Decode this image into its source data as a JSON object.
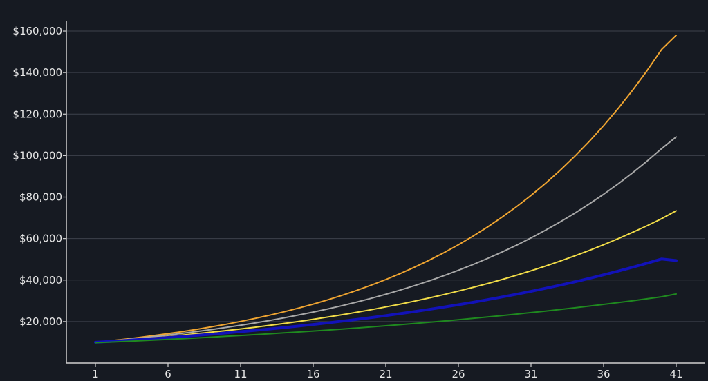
{
  "chart_data": {
    "type": "line",
    "title": "",
    "xlabel": "",
    "ylabel": "",
    "x": [
      1,
      2,
      3,
      4,
      5,
      6,
      7,
      8,
      9,
      10,
      11,
      12,
      13,
      14,
      15,
      16,
      17,
      18,
      19,
      20,
      21,
      22,
      23,
      24,
      25,
      26,
      27,
      28,
      29,
      30,
      31,
      32,
      33,
      34,
      35,
      36,
      37,
      38,
      39,
      40,
      41
    ],
    "x_ticks": [
      1,
      6,
      11,
      16,
      21,
      26,
      31,
      36,
      41
    ],
    "x_tick_labels": [
      "1",
      "6",
      "11",
      "16",
      "21",
      "26",
      "31",
      "36",
      "41"
    ],
    "xlim": [
      -1,
      43
    ],
    "ylim": [
      0,
      165000
    ],
    "y_ticks": [
      20000,
      40000,
      60000,
      80000,
      100000,
      120000,
      140000,
      160000
    ],
    "y_tick_labels": [
      "$20,000",
      "$40,000",
      "$60,000",
      "$80,000",
      "$100,000",
      "$120,000",
      "$140,000",
      "$160,000"
    ],
    "grid": "horizontal",
    "legend": "none",
    "background": "#161a22",
    "series": [
      {
        "color": "#f0a531",
        "width": 2,
        "values": [
          10000,
          10720,
          11490,
          12320,
          13210,
          14160,
          15180,
          16280,
          17450,
          18710,
          20060,
          21510,
          23060,
          24720,
          26510,
          28420,
          30470,
          32670,
          35020,
          37550,
          40260,
          43160,
          46270,
          49610,
          53190,
          57030,
          61140,
          65550,
          70280,
          75350,
          80780,
          86610,
          92860,
          99550,
          106730,
          114430,
          122690,
          131540,
          141020,
          151190,
          158000
        ]
      },
      {
        "color": "#a8a8a8",
        "width": 2,
        "values": [
          10000,
          10620,
          11270,
          11970,
          12710,
          13490,
          14330,
          15210,
          16150,
          17150,
          18210,
          19330,
          20530,
          21790,
          23140,
          24570,
          26080,
          27690,
          29400,
          31210,
          33140,
          35190,
          37360,
          39660,
          42110,
          44710,
          47460,
          50390,
          53500,
          56800,
          60310,
          64030,
          67980,
          72170,
          76630,
          81350,
          86370,
          91700,
          97360,
          103370,
          109000
        ]
      },
      {
        "color": "#f1dc48",
        "width": 2,
        "values": [
          10000,
          10510,
          11050,
          11610,
          12200,
          12820,
          13480,
          14160,
          14880,
          15640,
          16440,
          17280,
          18160,
          19090,
          20060,
          21090,
          22160,
          23290,
          24480,
          25730,
          27040,
          28420,
          29870,
          31390,
          32990,
          34680,
          36450,
          38300,
          40260,
          42310,
          44470,
          46740,
          49120,
          51630,
          54260,
          57030,
          59940,
          63000,
          66210,
          69590,
          73400
        ]
      },
      {
        "color": "#1212b8",
        "width": 4,
        "values": [
          10000,
          10420,
          10860,
          11320,
          11800,
          12300,
          12810,
          13350,
          13920,
          14510,
          15120,
          15760,
          16420,
          17110,
          17840,
          18590,
          19370,
          20190,
          21040,
          21930,
          22860,
          23820,
          24830,
          25880,
          26970,
          28110,
          29290,
          30530,
          31820,
          33160,
          34560,
          36020,
          37540,
          39130,
          40780,
          42500,
          44300,
          46170,
          48120,
          50150,
          49400
        ]
      },
      {
        "color": "#1f8a1f",
        "width": 2,
        "values": [
          9800,
          10100,
          10410,
          10730,
          11060,
          11400,
          11750,
          12110,
          12480,
          12870,
          13260,
          13670,
          14090,
          14530,
          14970,
          15430,
          15910,
          16400,
          16900,
          17420,
          17960,
          18510,
          19080,
          19670,
          20270,
          20890,
          21540,
          22200,
          22880,
          23580,
          24310,
          25060,
          25830,
          26620,
          27440,
          28280,
          29150,
          30050,
          30970,
          31930,
          33300
        ]
      }
    ]
  }
}
